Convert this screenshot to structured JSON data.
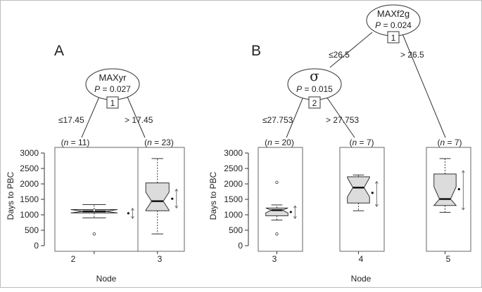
{
  "panels": {
    "A": {
      "label": "A",
      "root": {
        "variable": "MAXyr",
        "p_text": "P = 0.027",
        "p_prefix": "P",
        "p_value": "0.027",
        "id": "1"
      },
      "edges": {
        "left": "≤17.45",
        "right": "> 17.45"
      },
      "leaves": [
        {
          "node": "2",
          "n_text": "(n = 11)",
          "n": "11"
        },
        {
          "node": "3",
          "n_text": "(n = 23)",
          "n": "23"
        }
      ],
      "ylabel": "Days to PBC",
      "xlabel": "Node"
    },
    "B": {
      "label": "B",
      "root": {
        "variable": "MAXf2g",
        "p_text": "P = 0.024",
        "p_prefix": "P",
        "p_value": "0.024",
        "id": "1"
      },
      "inner": {
        "variable": "σ",
        "p_text": "P = 0.015",
        "p_prefix": "P",
        "p_value": "0.015",
        "id": "2"
      },
      "edges": {
        "root_left": "≤26.5",
        "root_right": "> 26.5",
        "inner_left": "≤27.753",
        "inner_right": "> 27.753"
      },
      "leaves": [
        {
          "node": "3",
          "n_text": "(n = 20)",
          "n": "20"
        },
        {
          "node": "4",
          "n_text": "(n = 7)",
          "n": "7"
        },
        {
          "node": "5",
          "n_text": "(n = 7)",
          "n": "7"
        }
      ],
      "ylabel": "Days to PBC",
      "xlabel": "Node"
    }
  },
  "chart_data": [
    {
      "type": "boxplot",
      "panel": "A",
      "ylabel": "Days to PBC",
      "xlabel": "Node",
      "ylim": [
        0,
        3000
      ],
      "yticks": [
        0,
        500,
        1000,
        1500,
        2000,
        2500,
        3000
      ],
      "boxes": [
        {
          "node": "2",
          "whisker_low": 900,
          "q1": 1060,
          "median": 1110,
          "q3": 1170,
          "whisker_high": 1330,
          "notch_low": 1040,
          "notch_high": 1180,
          "outliers": [
            380,
            1150
          ],
          "mean": 1050,
          "mean_ci": [
            880,
            1210
          ]
        },
        {
          "node": "3",
          "whisker_low": 380,
          "q1": 1130,
          "median": 1440,
          "q3": 2030,
          "whisker_high": 2820,
          "notch_low": 1150,
          "notch_high": 1730,
          "outliers": [],
          "mean": 1520,
          "mean_ci": [
            1220,
            1830
          ]
        }
      ],
      "colors": {
        "box_fill": "#dcdcdc",
        "line": "#333333"
      }
    },
    {
      "type": "boxplot",
      "panel": "B",
      "ylabel": "Days to PBC",
      "xlabel": "Node",
      "ylim": [
        0,
        3000
      ],
      "yticks": [
        0,
        500,
        1000,
        1500,
        2000,
        2500,
        3000
      ],
      "boxes": [
        {
          "node": "3",
          "whisker_low": 830,
          "q1": 970,
          "median": 1150,
          "q3": 1220,
          "whisker_high": 1320,
          "notch_low": 1060,
          "notch_high": 1240,
          "outliers": [
            380,
            2050
          ],
          "mean": 1090,
          "mean_ci": [
            880,
            1290
          ]
        },
        {
          "node": "4",
          "whisker_low": 1130,
          "q1": 1380,
          "median": 1880,
          "q3": 2230,
          "whisker_high": 2290,
          "notch_low": 1580,
          "notch_high": 2200,
          "outliers": [],
          "mean": 1710,
          "mean_ci": [
            1270,
            2080
          ]
        },
        {
          "node": "5",
          "whisker_low": 1080,
          "q1": 1300,
          "median": 1510,
          "q3": 2320,
          "whisker_high": 2820,
          "notch_low": 1270,
          "notch_high": 1910,
          "outliers": [],
          "mean": 1830,
          "mean_ci": [
            1160,
            2430
          ]
        }
      ],
      "colors": {
        "box_fill": "#dcdcdc",
        "line": "#333333"
      }
    }
  ]
}
